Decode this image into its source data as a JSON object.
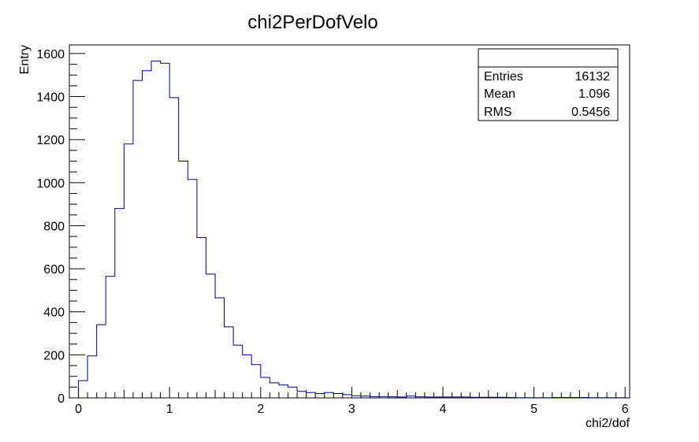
{
  "chart_data": {
    "type": "histogram",
    "title": "chi2PerDofVelo",
    "xlabel": "chi2/dof",
    "ylabel": "Entry",
    "xlim": [
      -0.1,
      6.05
    ],
    "ylim": [
      0,
      1640
    ],
    "x_ticks": [
      0,
      1,
      2,
      3,
      4,
      5,
      6
    ],
    "y_ticks": [
      0,
      200,
      400,
      600,
      800,
      1000,
      1200,
      1400,
      1600
    ],
    "bin_start": 0,
    "bin_width": 0.1,
    "values": [
      80,
      195,
      340,
      565,
      880,
      1180,
      1475,
      1520,
      1565,
      1555,
      1395,
      1100,
      1015,
      745,
      575,
      465,
      330,
      245,
      200,
      155,
      95,
      70,
      60,
      50,
      30,
      25,
      20,
      25,
      20,
      15,
      10,
      8,
      6,
      6,
      5,
      4,
      8,
      5,
      4,
      4,
      4,
      4,
      4,
      3,
      3,
      3,
      3,
      2,
      1,
      1,
      1,
      1,
      2,
      2,
      2,
      2,
      1,
      1,
      1,
      1
    ],
    "line_color": "#000080",
    "grid": false,
    "legend": "top-right"
  },
  "stats": {
    "entries_label": "Entries",
    "entries_value": "16132",
    "mean_label": "Mean",
    "mean_value": "1.096",
    "rms_label": "RMS",
    "rms_value": "0.5456"
  }
}
